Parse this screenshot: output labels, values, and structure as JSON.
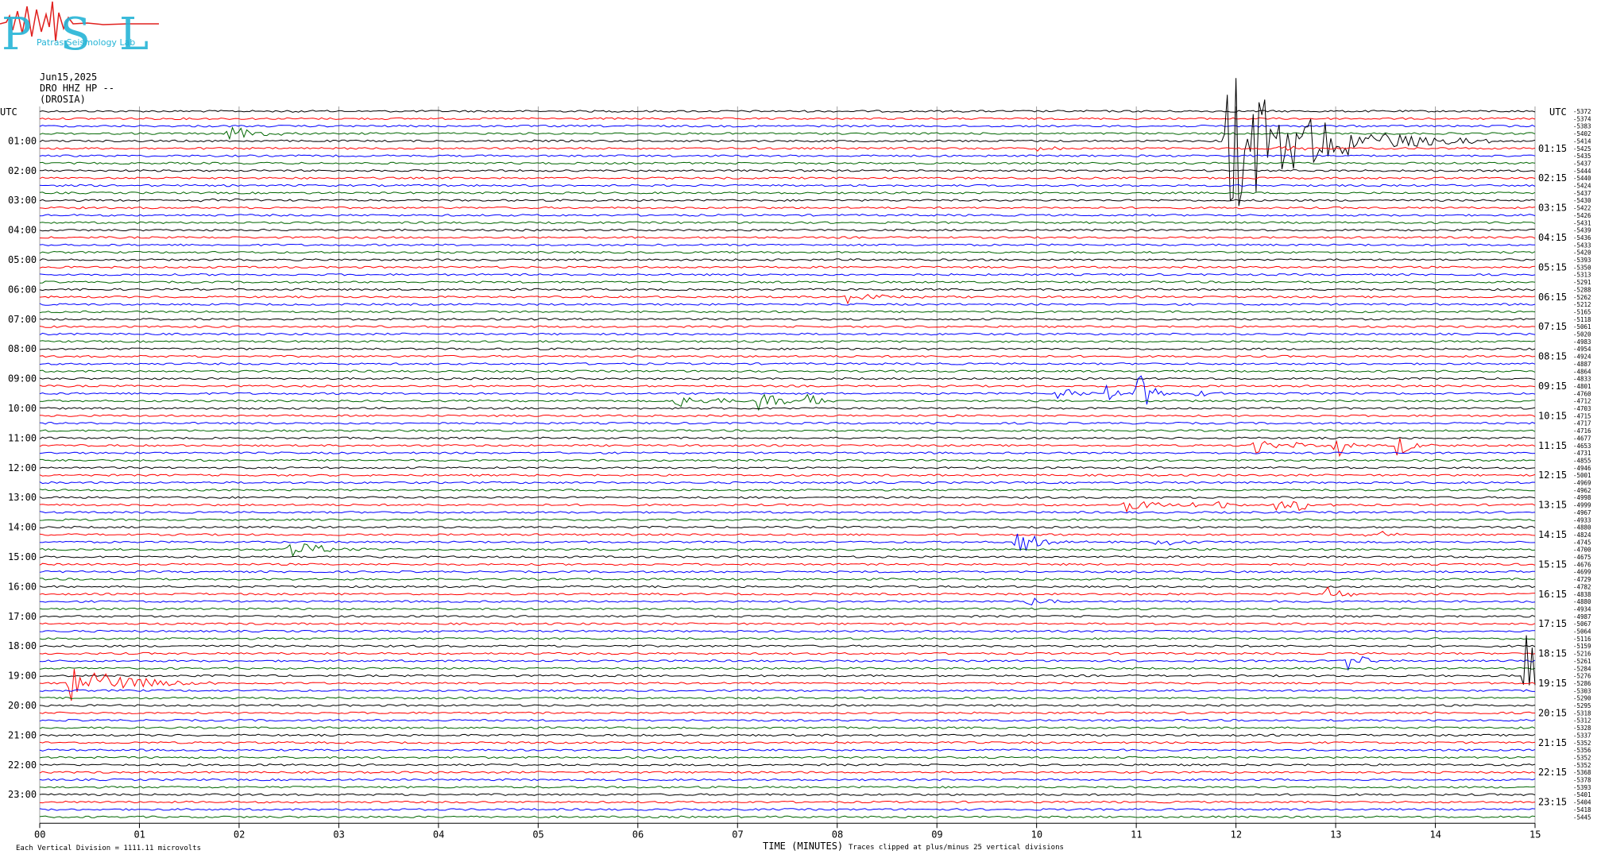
{
  "header": {
    "logo_text": "PSL",
    "logo_subtitle": "Patras Seismology Lab",
    "date": "Jun15,2025",
    "station": "DRO HHZ HP --",
    "location": "(DROSIA)",
    "utc_left": "UTC",
    "utc_right": "UTC"
  },
  "footer": {
    "scale_note": "Each Vertical Division = 1111.11 microvolts",
    "xlabel": "TIME (MINUTES)",
    "clip_note": "Traces clipped at plus/minus 25 vertical divisions"
  },
  "colors": {
    "black": "#000000",
    "red": "#ff0000",
    "blue": "#0000ff",
    "green": "#006600",
    "grid": "#888888"
  },
  "chart_data": {
    "type": "line",
    "title": "Jun15,2025 DRO HHZ HP -- (DROSIA)",
    "xlabel": "TIME (MINUTES)",
    "xlim": [
      0,
      15
    ],
    "x_ticks": [
      "00",
      "01",
      "02",
      "03",
      "04",
      "05",
      "06",
      "07",
      "08",
      "09",
      "10",
      "11",
      "12",
      "13",
      "14",
      "15"
    ],
    "row_minutes": 15,
    "rows": 96,
    "color_cycle": [
      "black",
      "red",
      "blue",
      "green"
    ],
    "left_time_labels": [
      "01:00",
      "02:00",
      "03:00",
      "04:00",
      "05:00",
      "06:00",
      "07:00",
      "08:00",
      "09:00",
      "10:00",
      "11:00",
      "12:00",
      "13:00",
      "14:00",
      "15:00",
      "16:00",
      "17:00",
      "18:00",
      "19:00",
      "20:00",
      "21:00",
      "22:00",
      "23:00"
    ],
    "right_time_labels": [
      "01:15",
      "02:15",
      "03:15",
      "04:15",
      "05:15",
      "06:15",
      "07:15",
      "08:15",
      "09:15",
      "10:15",
      "11:15",
      "12:15",
      "13:15",
      "14:15",
      "15:15",
      "16:15",
      "17:15",
      "18:15",
      "19:15",
      "20:15",
      "21:15",
      "22:15",
      "23:15"
    ],
    "right_values": [
      "-5372",
      "-5374",
      "-5383",
      "-5402",
      "-5414",
      "-5425",
      "-5435",
      "-5437",
      "-5444",
      "-5440",
      "-5424",
      "-5437",
      "-5430",
      "-5422",
      "-5426",
      "-5431",
      "-5439",
      "-5436",
      "-5433",
      "-5420",
      "-5393",
      "-5350",
      "-5313",
      "-5291",
      "-5288",
      "-5262",
      "-5212",
      "-5165",
      "-5118",
      "-5061",
      "-5020",
      "-4983",
      "-4954",
      "-4924",
      "-4887",
      "-4864",
      "-4833",
      "-4801",
      "-4760",
      "-4712",
      "-4703",
      "-4715",
      "-4717",
      "-4716",
      "-4677",
      "-4653",
      "-4731",
      "-4855",
      "-4946",
      "-5001",
      "-4969",
      "-4962",
      "-4998",
      "-4999",
      "-4967",
      "-4933",
      "-4880",
      "-4824",
      "-4745",
      "-4700",
      "-4675",
      "-4676",
      "-4699",
      "-4729",
      "-4782",
      "-4838",
      "-4880",
      "-4934",
      "-4987",
      "-5067",
      "-5064",
      "-5116",
      "-5159",
      "-5216",
      "-5261",
      "-5284",
      "-5276",
      "-5286",
      "-5303",
      "-5290",
      "-5295",
      "-5318",
      "-5312",
      "-5328",
      "-5337",
      "-5352",
      "-5356",
      "-5352",
      "-5352",
      "-5368",
      "-5378",
      "-5393",
      "-5401",
      "-5404",
      "-5418",
      "-5445"
    ],
    "events": [
      {
        "row": 0,
        "minute": 2.5,
        "amp": 2,
        "width": 0.3
      },
      {
        "row": 3,
        "minute": 1.9,
        "amp": 8,
        "width": 0.6
      },
      {
        "row": 4,
        "minute": 11.9,
        "amp": 110,
        "width": 1.2
      },
      {
        "row": 5,
        "minute": 10.0,
        "amp": 4,
        "width": 0.3
      },
      {
        "row": 5,
        "minute": 12.4,
        "amp": 5,
        "width": 0.4
      },
      {
        "row": 12,
        "minute": 1.6,
        "amp": 3,
        "width": 0.6
      },
      {
        "row": 25,
        "minute": 8.1,
        "amp": 8,
        "width": 0.5
      },
      {
        "row": 31,
        "minute": 5.3,
        "amp": 3,
        "width": 0.1
      },
      {
        "row": 32,
        "minute": 7.8,
        "amp": 4,
        "width": 0.2
      },
      {
        "row": 38,
        "minute": 10.2,
        "amp": 9,
        "width": 0.3
      },
      {
        "row": 38,
        "minute": 10.7,
        "amp": 10,
        "width": 0.2
      },
      {
        "row": 38,
        "minute": 11.0,
        "amp": 38,
        "width": 0.2
      },
      {
        "row": 38,
        "minute": 11.6,
        "amp": 8,
        "width": 0.2
      },
      {
        "row": 39,
        "minute": 6.4,
        "amp": 12,
        "width": 0.25
      },
      {
        "row": 39,
        "minute": 6.8,
        "amp": 8,
        "width": 0.15
      },
      {
        "row": 39,
        "minute": 7.2,
        "amp": 18,
        "width": 0.3
      },
      {
        "row": 39,
        "minute": 7.7,
        "amp": 12,
        "width": 0.2
      },
      {
        "row": 45,
        "minute": 12.2,
        "amp": 12,
        "width": 0.3
      },
      {
        "row": 45,
        "minute": 12.6,
        "amp": 8,
        "width": 0.15
      },
      {
        "row": 45,
        "minute": 13.0,
        "amp": 20,
        "width": 0.15
      },
      {
        "row": 45,
        "minute": 13.6,
        "amp": 14,
        "width": 0.3
      },
      {
        "row": 53,
        "minute": 10.9,
        "amp": 14,
        "width": 0.3
      },
      {
        "row": 53,
        "minute": 11.5,
        "amp": 7,
        "width": 0.2
      },
      {
        "row": 53,
        "minute": 11.8,
        "amp": 12,
        "width": 0.15
      },
      {
        "row": 53,
        "minute": 12.4,
        "amp": 8,
        "width": 0.3
      },
      {
        "row": 53,
        "minute": 12.6,
        "amp": 12,
        "width": 0.2
      },
      {
        "row": 57,
        "minute": 13.3,
        "amp": 12,
        "width": 0.25
      },
      {
        "row": 58,
        "minute": 9.8,
        "amp": 18,
        "width": 0.35
      },
      {
        "row": 58,
        "minute": 11.2,
        "amp": 9,
        "width": 0.3
      },
      {
        "row": 59,
        "minute": 2.5,
        "amp": 14,
        "width": 0.5
      },
      {
        "row": 65,
        "minute": 12.9,
        "amp": 12,
        "width": 0.3
      },
      {
        "row": 66,
        "minute": 9.9,
        "amp": 7,
        "width": 0.5
      },
      {
        "row": 74,
        "minute": 13.1,
        "amp": 14,
        "width": 0.3
      },
      {
        "row": 76,
        "minute": 14.9,
        "amp": 60,
        "width": 0.5
      },
      {
        "row": 77,
        "minute": 0.3,
        "amp": 24,
        "width": 0.9
      }
    ]
  }
}
